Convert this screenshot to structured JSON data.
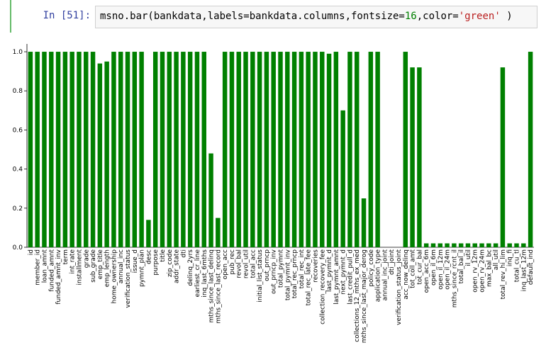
{
  "cell": {
    "prompt": "In [51]:",
    "code": [
      "msno.bar(bankdata,labels=bankdata.columns,fontsize=",
      "16",
      ",color=",
      "'green'",
      " )"
    ]
  },
  "chart_data": {
    "type": "bar",
    "color": "#008000",
    "categories": [
      "id",
      "member_id",
      "loan_amnt",
      "funded_amnt",
      "funded_amnt_inv",
      "term",
      "int_rate",
      "installment",
      "grade",
      "sub_grade",
      "emp_title",
      "emp_length",
      "home_ownership",
      "annual_inc",
      "verification_status",
      "issue_d",
      "pymnt_plan",
      "desc",
      "purpose",
      "title",
      "zip_code",
      "addr_state",
      "dti",
      "delinq_2yrs",
      "earliest_cr_line",
      "inq_last_6mths",
      "mths_since_last_delinq",
      "mths_since_last_record",
      "open_acc",
      "pub_rec",
      "revol_bal",
      "revol_util",
      "total_acc",
      "initial_list_status",
      "out_prncp",
      "out_prncp_inv",
      "total_pymnt",
      "total_pymnt_inv",
      "total_rec_prncp",
      "total_rec_int",
      "total_rec_late_fee",
      "recoveries",
      "collection_recovery_fee",
      "last_pymnt_d",
      "last_pymnt_amnt",
      "next_pymnt_d",
      "last_credit_pull_d",
      "collections_12_mths_ex_med",
      "mths_since_last_major_derog",
      "policy_code",
      "application_type",
      "annual_inc_joint",
      "dti_joint",
      "verification_status_joint",
      "acc_now_delinq",
      "tot_coll_amt",
      "tot_cur_bal",
      "open_acc_6m",
      "open_il_6m",
      "open_il_12m",
      "open_il_24m",
      "mths_since_rcnt_il",
      "total_bal_il",
      "il_util",
      "open_rv_12m",
      "open_rv_24m",
      "max_bal_bc",
      "all_util",
      "total_rev_hi_lim",
      "inq_fi",
      "total_cu_tl",
      "inq_last_12m",
      "default_ind"
    ],
    "values": [
      1,
      1,
      1,
      1,
      1,
      1,
      1,
      1,
      1,
      1,
      0.94,
      0.95,
      1,
      1,
      1,
      1,
      1,
      0.14,
      1,
      1,
      1,
      1,
      1,
      1,
      1,
      1,
      0.48,
      0.15,
      1,
      1,
      1,
      1,
      1,
      1,
      1,
      1,
      1,
      1,
      1,
      1,
      1,
      1,
      1,
      0.99,
      1,
      0.7,
      1,
      1,
      0.25,
      1,
      1,
      0,
      0,
      0,
      1,
      0.92,
      0.92,
      0.02,
      0.02,
      0.02,
      0.02,
      0.02,
      0.02,
      0.02,
      0.02,
      0.02,
      0.02,
      0.02,
      0.92,
      0.02,
      0.02,
      0.02,
      1
    ],
    "ylim": [
      0,
      1.04
    ],
    "yticks": [
      {
        "value": 0,
        "label": "0.0"
      },
      {
        "value": 0.2,
        "label": "0.2"
      },
      {
        "value": 0.4,
        "label": "0.4"
      },
      {
        "value": 0.6,
        "label": "0.6"
      },
      {
        "value": 0.8,
        "label": "0.8"
      },
      {
        "value": 1,
        "label": "1.0"
      }
    ]
  }
}
